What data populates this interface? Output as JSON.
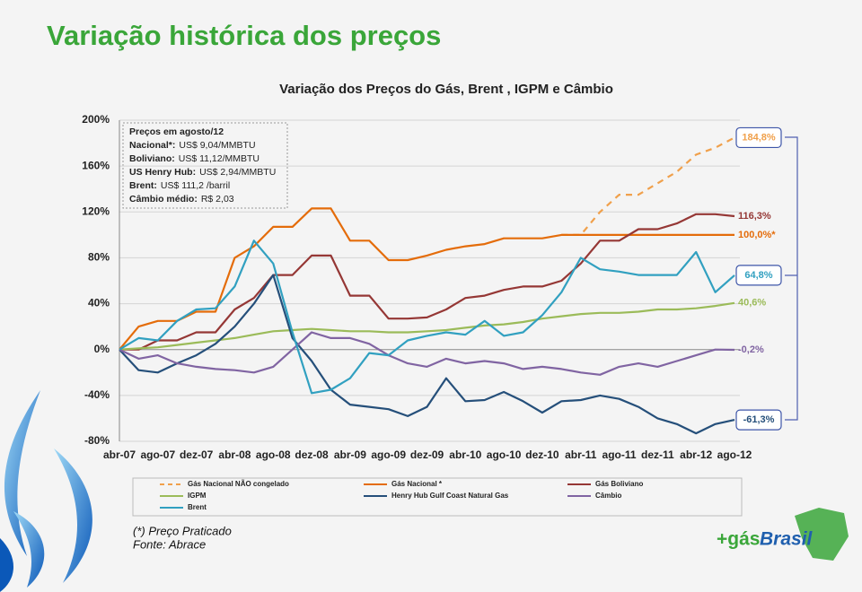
{
  "header": {
    "title": "Variação histórica dos preços"
  },
  "chart_data": {
    "type": "line",
    "title": "Variação dos Preços do Gás, Brent , IGPM e Câmbio",
    "categories": [
      "abr-07",
      null,
      "ago-07",
      null,
      "dez-07",
      null,
      "abr-08",
      null,
      "ago-08",
      null,
      "dez-08",
      null,
      "abr-09",
      null,
      "ago-09",
      null,
      "dez-09",
      null,
      "abr-10",
      null,
      "ago-10",
      null,
      "dez-10",
      null,
      "abr-11",
      null,
      "ago-11",
      null,
      "dez-11",
      null,
      "abr-12",
      null,
      "ago-12"
    ],
    "ylim": [
      -80,
      200
    ],
    "yticks": [
      {
        "value": -80,
        "label": "-80%"
      },
      {
        "value": -40,
        "label": "-40%"
      },
      {
        "value": 0,
        "label": "0%"
      },
      {
        "value": 40,
        "label": "40%"
      },
      {
        "value": 80,
        "label": "80%"
      },
      {
        "value": 120,
        "label": "120%"
      },
      {
        "value": 160,
        "label": "160%"
      },
      {
        "value": 200,
        "label": "200%"
      }
    ],
    "grid": true,
    "series": [
      {
        "name": "Gás Nacional NÃO congelado",
        "color": "#f0a04b",
        "dash": true,
        "highlight": true,
        "values": [
          null,
          null,
          null,
          null,
          null,
          null,
          null,
          null,
          null,
          null,
          null,
          null,
          null,
          null,
          null,
          null,
          null,
          null,
          null,
          null,
          null,
          null,
          null,
          100,
          100,
          120,
          135,
          135,
          145,
          155,
          170,
          176,
          184.8
        ],
        "value_labels": [
          null,
          null,
          null,
          null,
          null,
          null,
          null,
          null,
          null,
          null,
          null,
          null,
          null,
          null,
          null,
          null,
          null,
          null,
          null,
          null,
          null,
          null,
          null,
          null,
          null,
          null,
          null,
          null,
          null,
          null,
          null,
          null,
          "184,8%"
        ]
      },
      {
        "name": "Gás Nacional *",
        "color": "#e46c0a",
        "dash": false,
        "highlight": false,
        "values": [
          0,
          20,
          25,
          25,
          33,
          33,
          80,
          90,
          107,
          107,
          123,
          123,
          95,
          95,
          78,
          78,
          82,
          87,
          90,
          92,
          97,
          97,
          97,
          100,
          100,
          100,
          100,
          100,
          100,
          100,
          100,
          100,
          100
        ],
        "value_labels": [
          null,
          null,
          null,
          null,
          null,
          null,
          null,
          null,
          null,
          null,
          null,
          null,
          null,
          null,
          null,
          null,
          null,
          null,
          null,
          null,
          null,
          null,
          null,
          null,
          null,
          null,
          null,
          null,
          null,
          null,
          null,
          null,
          "100,0%*"
        ]
      },
      {
        "name": "Gás Boliviano",
        "color": "#953735",
        "dash": false,
        "highlight": false,
        "values": [
          0,
          0,
          8,
          8,
          15,
          15,
          35,
          45,
          65,
          65,
          82,
          82,
          47,
          47,
          27,
          27,
          28,
          35,
          45,
          47,
          52,
          55,
          55,
          60,
          75,
          95,
          95,
          105,
          105,
          110,
          118,
          118,
          116.3
        ],
        "value_labels": [
          null,
          null,
          null,
          null,
          null,
          null,
          null,
          null,
          null,
          null,
          null,
          null,
          null,
          null,
          null,
          null,
          null,
          null,
          null,
          null,
          null,
          null,
          null,
          null,
          null,
          null,
          null,
          null,
          null,
          null,
          null,
          null,
          "116,3%"
        ]
      },
      {
        "name": "IGPM",
        "color": "#9bbb59",
        "dash": false,
        "highlight": false,
        "values": [
          0,
          1,
          2,
          4,
          6,
          8,
          10,
          13,
          16,
          17,
          18,
          17,
          16,
          16,
          15,
          15,
          16,
          17,
          19,
          21,
          22,
          24,
          27,
          29,
          31,
          32,
          32,
          33,
          35,
          35,
          36,
          38,
          40.6
        ],
        "value_labels": [
          null,
          null,
          null,
          null,
          null,
          null,
          null,
          null,
          null,
          null,
          null,
          null,
          null,
          null,
          null,
          null,
          null,
          null,
          null,
          null,
          null,
          null,
          null,
          null,
          null,
          null,
          null,
          null,
          null,
          null,
          null,
          null,
          "40,6%"
        ]
      },
      {
        "name": "Henry Hub Gulf Coast Natural Gas",
        "color": "#254f7a",
        "dash": false,
        "highlight": true,
        "values": [
          0,
          -18,
          -20,
          -12,
          -5,
          5,
          20,
          40,
          65,
          10,
          -10,
          -35,
          -48,
          -50,
          -52,
          -58,
          -50,
          -25,
          -45,
          -44,
          -37,
          -45,
          -55,
          -45,
          -44,
          -40,
          -43,
          -50,
          -60,
          -65,
          -73,
          -65,
          -61.3
        ],
        "value_labels": [
          null,
          null,
          null,
          null,
          null,
          null,
          null,
          null,
          null,
          null,
          null,
          null,
          null,
          null,
          null,
          null,
          null,
          null,
          null,
          null,
          null,
          null,
          null,
          null,
          null,
          null,
          null,
          null,
          null,
          null,
          null,
          null,
          "-61,3%"
        ]
      },
      {
        "name": "Câmbio",
        "color": "#8064a2",
        "dash": false,
        "highlight": false,
        "values": [
          0,
          -8,
          -5,
          -12,
          -15,
          -17,
          -18,
          -20,
          -15,
          0,
          15,
          10,
          10,
          5,
          -5,
          -12,
          -15,
          -8,
          -12,
          -10,
          -12,
          -17,
          -15,
          -17,
          -20,
          -22,
          -15,
          -12,
          -15,
          -10,
          -5,
          0,
          -0.2
        ],
        "value_labels": [
          null,
          null,
          null,
          null,
          null,
          null,
          null,
          null,
          null,
          null,
          null,
          null,
          null,
          null,
          null,
          null,
          null,
          null,
          null,
          null,
          null,
          null,
          null,
          null,
          null,
          null,
          null,
          null,
          null,
          null,
          null,
          null,
          "-0,2%"
        ]
      },
      {
        "name": "Brent",
        "color": "#31a0c0",
        "dash": false,
        "highlight": true,
        "values": [
          0,
          10,
          8,
          25,
          35,
          36,
          55,
          95,
          75,
          15,
          -38,
          -35,
          -25,
          -3,
          -5,
          8,
          12,
          15,
          13,
          25,
          12,
          15,
          30,
          50,
          80,
          70,
          68,
          65,
          65,
          65,
          85,
          50,
          64.8
        ],
        "value_labels": [
          null,
          null,
          null,
          null,
          null,
          null,
          null,
          null,
          null,
          null,
          null,
          null,
          null,
          null,
          null,
          null,
          null,
          null,
          null,
          null,
          null,
          null,
          null,
          null,
          null,
          null,
          null,
          null,
          null,
          null,
          null,
          null,
          "64,8%"
        ]
      }
    ],
    "annotation": {
      "title": "Preços em agosto/12",
      "lines": [
        {
          "label": "Nacional*:",
          "text": "US$ 9,04/MMBTU"
        },
        {
          "label": "Boliviano:",
          "text": "US$ 11,12/MMBTU"
        },
        {
          "label": "US Henry Hub:",
          "text": "US$ 2,94/MMBTU"
        },
        {
          "label": "Brent:",
          "text": "US$ 111,2 /barril"
        },
        {
          "label": "Câmbio médio:",
          "text": "R$ 2,03"
        }
      ]
    }
  },
  "footnotes": [
    "(*) Preço Praticado",
    "Fonte: Abrace"
  ],
  "logo": {
    "part1": "+gás",
    "part2": "Brasil"
  }
}
